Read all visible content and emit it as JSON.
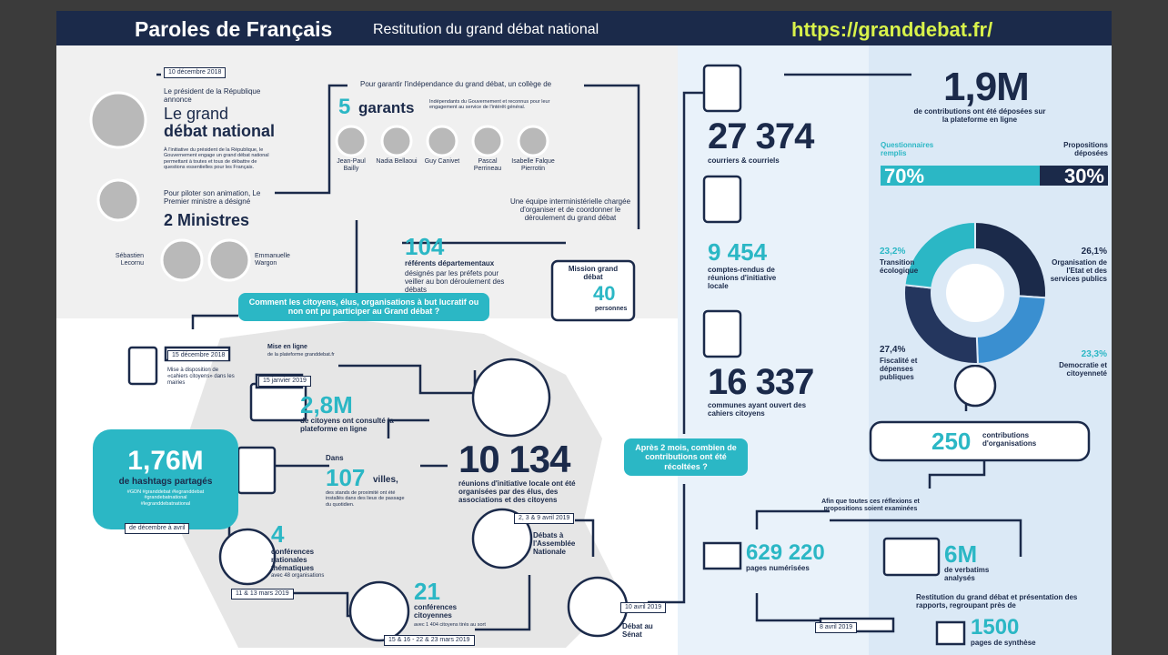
{
  "header": {
    "title": "Paroles de Français",
    "subtitle": "Restitution du grand débat national",
    "url": "https://granddebat.fr/"
  },
  "announce": {
    "date": "10 décembre 2018",
    "intro": "Le président de la République annonce",
    "title1": "Le grand",
    "title2": "débat national",
    "text": "À l'initiative du président de la République, le Gouvernement engage un grand débat national permettant à toutes et tous de débattre de questions essentielles pour les Français.",
    "pilot": "Pour piloter son animation, Le Premier ministre a désigné",
    "ministers": "2 Ministres",
    "minister_names": [
      "Sébastien Lecornu",
      "Emmanuelle Wargon"
    ]
  },
  "garants": {
    "intro": "Pour garantir l'indépendance du grand débat, un collège de",
    "count": "5",
    "word": "garants",
    "text": "Indépendants du Gouvernement et reconnus pour leur engagement au service de l'intérêt général.",
    "names": [
      "Jean-Paul Bailly",
      "Nadia Bellaoui",
      "Guy Canivet",
      "Pascal Perrineau",
      "Isabelle Falque Pierrotin"
    ]
  },
  "referents": {
    "number": "104",
    "title": "référents départementaux",
    "text": "désignés par les préfets pour veiller au bon déroulement des débats"
  },
  "mission": {
    "text": "Une équipe interministérielle chargée d'organiser et de coordonner le déroulement du grand débat",
    "title": "Mission grand débat",
    "number": "40",
    "unit": "personnes"
  },
  "question1": "Comment les citoyens, élus, organisations à but lucratif ou non ont pu participer au Grand débat ?",
  "cahiers": {
    "date": "15 décembre 2018",
    "text": "Mise à disposition de «cahiers citoyens» dans les mairies"
  },
  "plateforme": {
    "title": "Mise en ligne",
    "text": "de la plateforme granddebat.fr",
    "date": "15 janvier 2019",
    "number": "2,8M",
    "caption": "de citoyens ont consulté la plateforme en ligne"
  },
  "hashtags": {
    "number": "1,76M",
    "caption": "de hashtags partagés",
    "tags": "#GDN #granddebat #legranddebat #grandebatnational #legranddebatnational",
    "period": "de décembre à avril"
  },
  "stands": {
    "pre": "Dans",
    "number": "107",
    "unit": "villes,",
    "text": "des stands de proximité ont été installés dans des lieux de passage du quotidien."
  },
  "reunions": {
    "number": "10 134",
    "caption": "réunions d'initiative locale ont été organisées par des élus, des associations et des citoyens"
  },
  "conferences": {
    "number": "4",
    "caption": "conférences nationales thématiques",
    "detail": "avec 48 organisations",
    "date": "11 & 13 mars 2019"
  },
  "citoyennes": {
    "number": "21",
    "caption": "conférences citoyennes",
    "detail": "avec 1 404 citoyens tirés au sort",
    "date": "15 & 16 - 22 & 23 mars 2019"
  },
  "assemblee": {
    "date": "2, 3 & 9 avril 2019",
    "caption": "Débats à l'Assemblée Nationale"
  },
  "senat": {
    "date": "10 avril 2019",
    "caption": "Débat au Sénat"
  },
  "question2": "Après 2 mois, combien de contributions ont été récoltées ?",
  "courriers": {
    "number": "27 374",
    "caption": "courriers & courriels"
  },
  "comptes": {
    "number": "9 454",
    "caption": "comptes-rendus de réunions d'initiative locale"
  },
  "communes": {
    "number": "16 337",
    "caption": "communes ayant ouvert des cahiers citoyens"
  },
  "plateforme_total": {
    "number": "1,9M",
    "caption": "de contributions ont été déposées sur la plateforme en ligne"
  },
  "split": {
    "categories": [
      "Questionnaires remplis",
      "Propositions déposées"
    ],
    "values": [
      70,
      30
    ],
    "value_labels": [
      "70%",
      "30%"
    ],
    "colors": [
      "#2bb7c5",
      "#1b2a4a"
    ]
  },
  "themes": {
    "categories": [
      "Organisation de l'Etat et des services publics",
      "Democratie et citoyenneté",
      "Fiscalité et dépenses publiques",
      "Transition écologique"
    ],
    "values": [
      26.1,
      23.3,
      27.4,
      23.2
    ],
    "value_labels": [
      "26,1%",
      "23,3%",
      "27,4%",
      "23,2%"
    ],
    "colors": [
      "#1b2a4a",
      "#3a8fd0",
      "#24365e",
      "#2bb7c5"
    ]
  },
  "organisations": {
    "number": "250",
    "caption": "contributions d'organisations"
  },
  "examen": "Afin que toutes ces réflexions et propositions soient examinées",
  "pages": {
    "number": "629 220",
    "caption": "pages numérisées"
  },
  "verbatims": {
    "number": "6M",
    "caption": "de verbatims analysés"
  },
  "restitution": {
    "text": "Restitution du grand débat et présentation des rapports, regroupant près de",
    "date": "8 avril 2019",
    "number": "1500",
    "caption": "pages de synthèse"
  }
}
